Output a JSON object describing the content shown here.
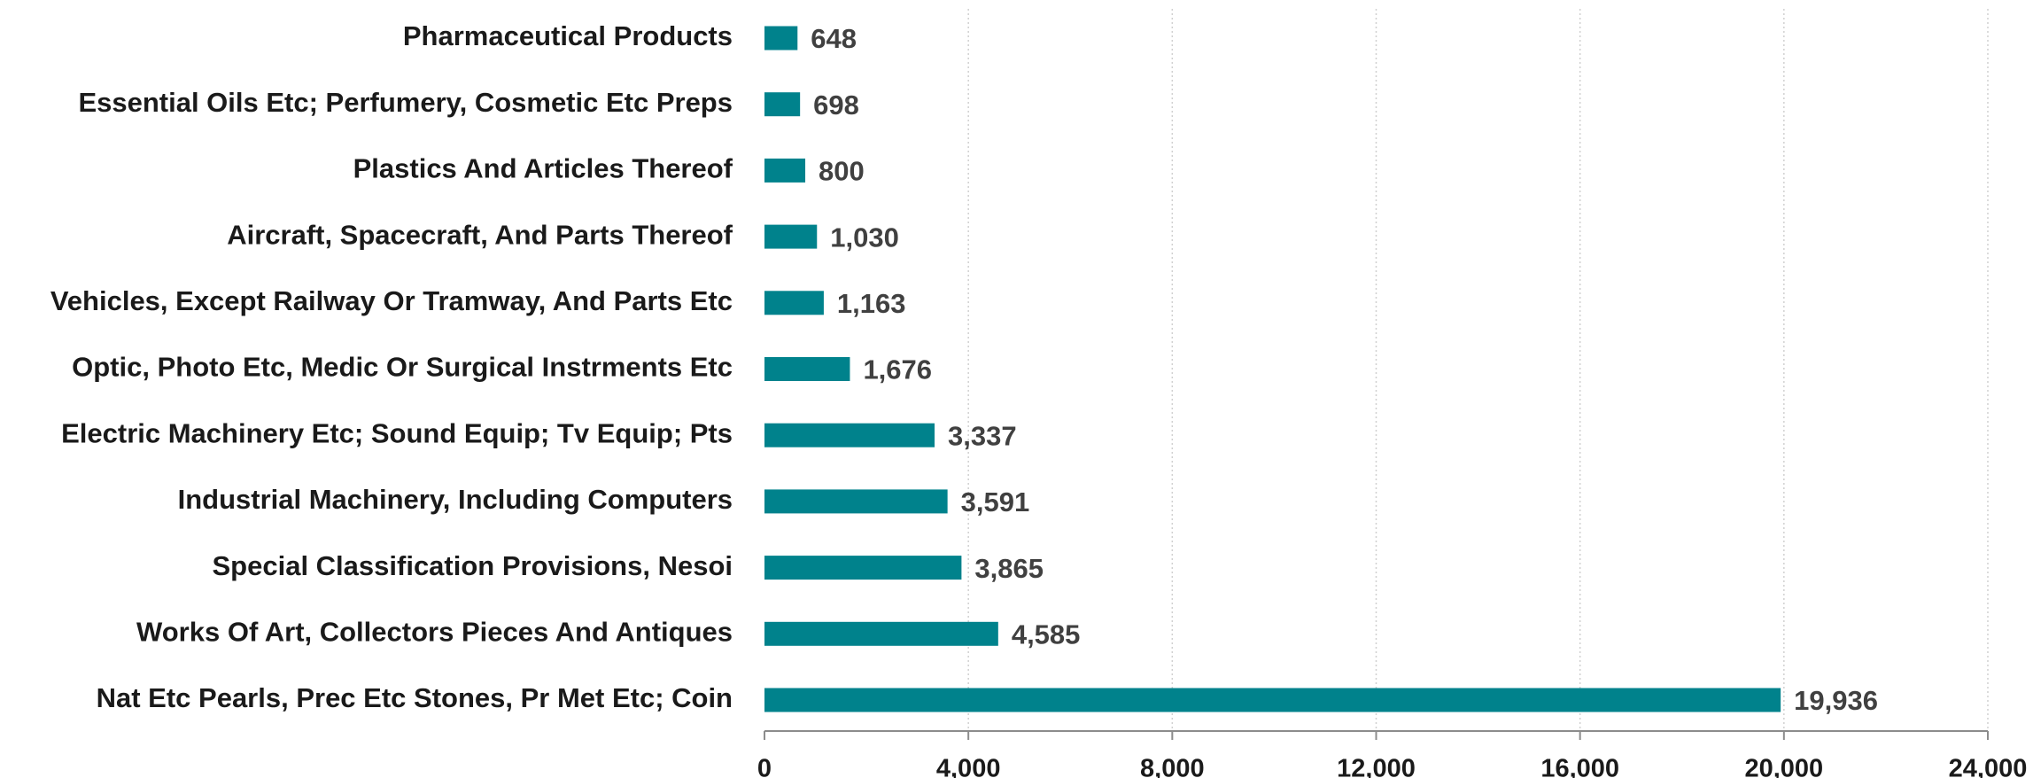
{
  "chart_data": {
    "type": "bar",
    "orientation": "horizontal",
    "categories": [
      "Pharmaceutical Products",
      "Essential Oils Etc; Perfumery, Cosmetic Etc Preps",
      "Plastics And Articles Thereof",
      "Aircraft, Spacecraft, And Parts Thereof",
      "Vehicles, Except Railway Or Tramway, And Parts Etc",
      "Optic, Photo Etc, Medic Or Surgical Instrments Etc",
      "Electric Machinery Etc; Sound Equip; Tv Equip; Pts",
      "Industrial Machinery, Including Computers",
      "Special Classification Provisions, Nesoi",
      "Works Of Art, Collectors Pieces And Antiques",
      "Nat Etc Pearls, Prec Etc Stones, Pr Met Etc; Coin"
    ],
    "values": [
      648,
      698,
      800,
      1030,
      1163,
      1676,
      3337,
      3591,
      3865,
      4585,
      19936
    ],
    "value_labels": [
      "648",
      "698",
      "800",
      "1,030",
      "1,163",
      "1,676",
      "3,337",
      "3,591",
      "3,865",
      "4,585",
      "19,936"
    ],
    "color": "#00828c",
    "xlim": [
      0,
      24000
    ],
    "xticks": [
      0,
      {
        "value": 4000,
        "label": "4,000"
      },
      {
        "value": 8000,
        "label": "8,000"
      },
      {
        "value": 12000,
        "label": "12,000"
      },
      {
        "value": 16000,
        "label": "16,000"
      },
      {
        "value": 20000,
        "label": "20,000"
      },
      {
        "value": 24000,
        "label": "24,000"
      }
    ],
    "grid": true
  }
}
